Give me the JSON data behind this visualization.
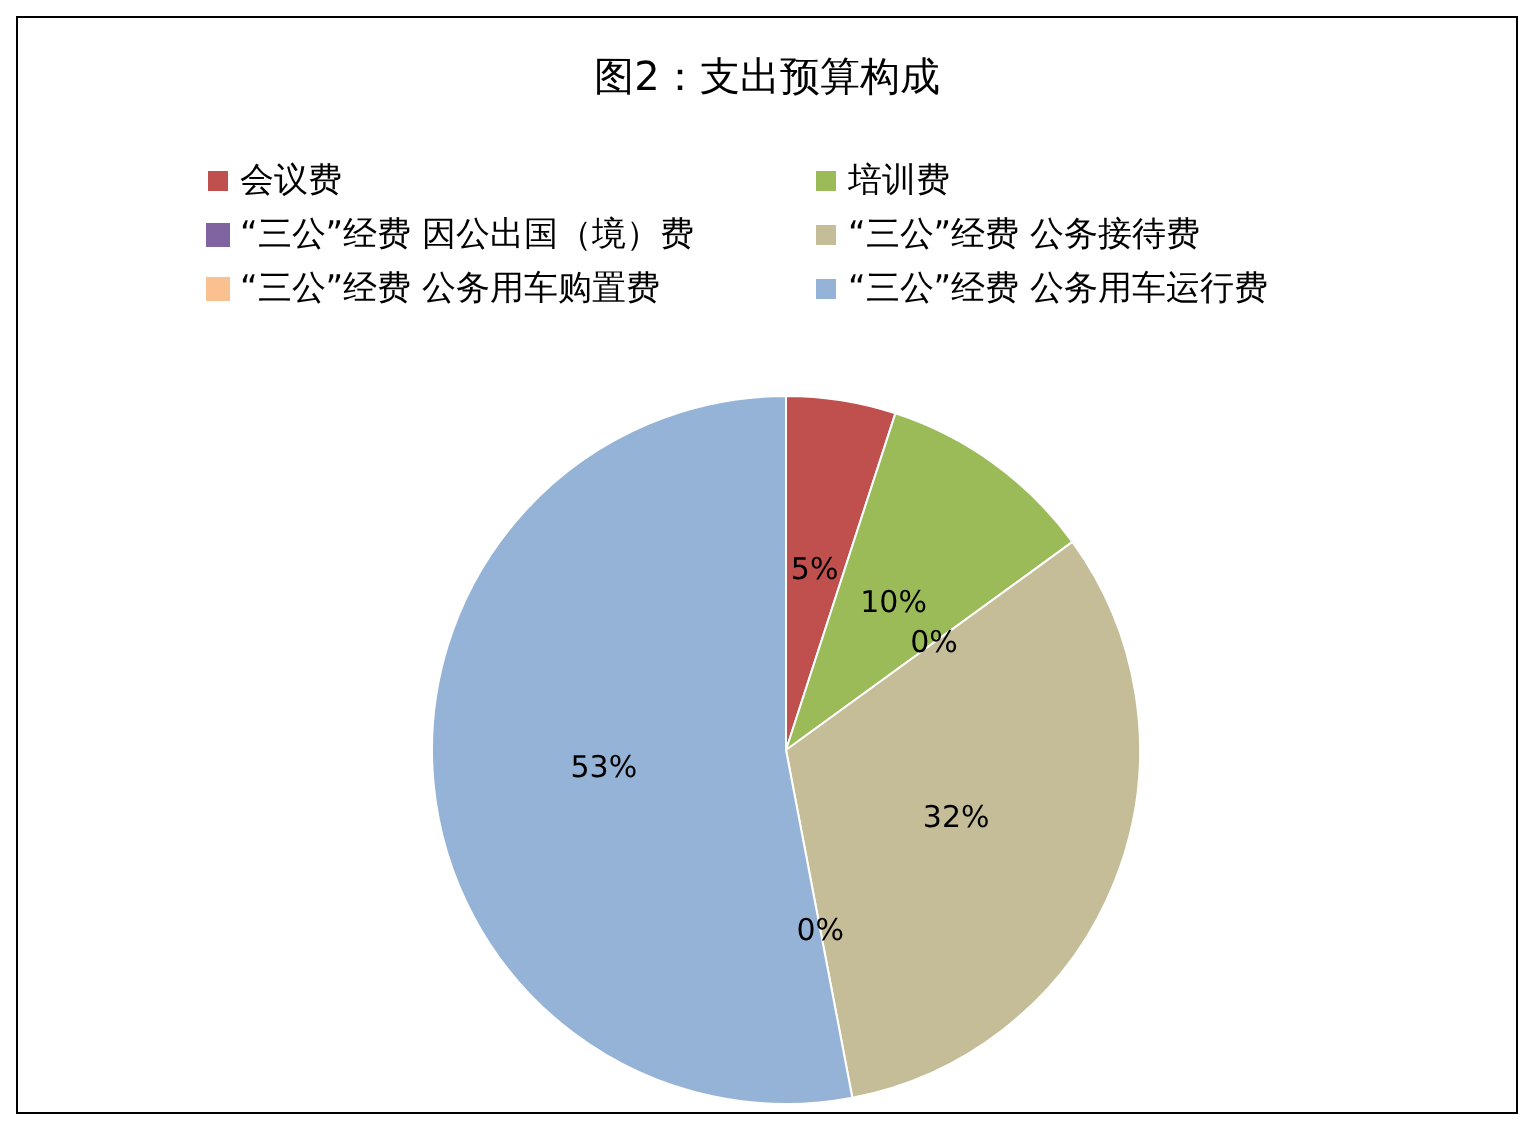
{
  "chart_data": {
    "type": "pie",
    "title": "图2：支出预算构成",
    "categories": [
      "会议费",
      "培训费",
      "“三公”经费 因公出国（境）费",
      "“三公”经费 公务接待费",
      "“三公”经费 公务用车购置费",
      "“三公”经费 公务用车运行费"
    ],
    "values": [
      5,
      10,
      0,
      32,
      0,
      53
    ],
    "colors": [
      "#c0504d",
      "#9bbb59",
      "#8064a2",
      "#c4bd97",
      "#fac090",
      "#95b3d7"
    ],
    "value_labels": [
      "5%",
      "10%",
      "0%",
      "32%",
      "0%",
      "53%"
    ],
    "legend": "top"
  }
}
